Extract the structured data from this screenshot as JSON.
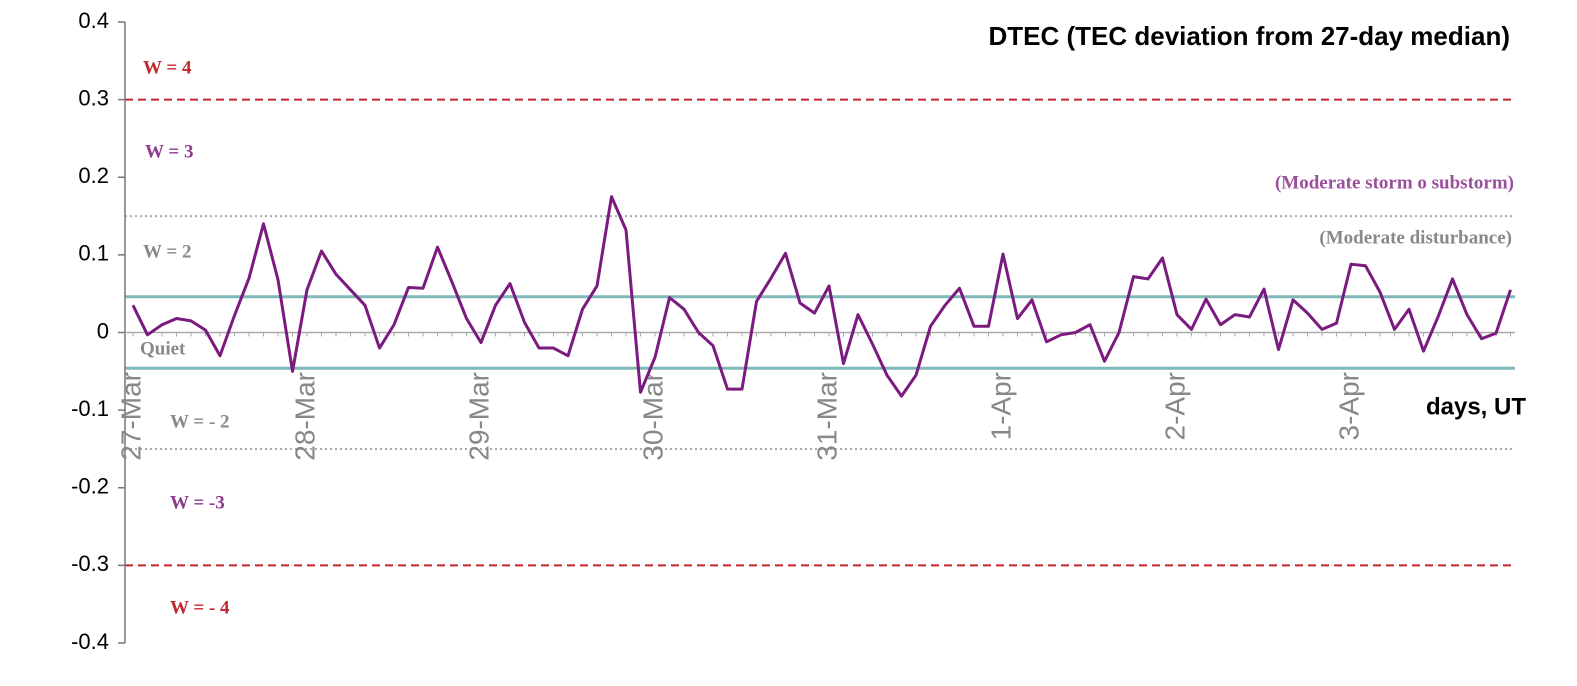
{
  "chart_data": {
    "type": "line",
    "title": "DTEC (TEC deviation from 27-day median)",
    "xlabel": "days, UT",
    "categories": [
      "27-Mar",
      null,
      null,
      null,
      null,
      null,
      null,
      null,
      null,
      null,
      null,
      null,
      "28-Mar",
      null,
      null,
      null,
      null,
      null,
      null,
      null,
      null,
      null,
      null,
      null,
      "29-Mar",
      null,
      null,
      null,
      null,
      null,
      null,
      null,
      null,
      null,
      null,
      null,
      "30-Mar",
      null,
      null,
      null,
      null,
      null,
      null,
      null,
      null,
      null,
      null,
      null,
      "31-Mar",
      null,
      null,
      null,
      null,
      null,
      null,
      null,
      null,
      null,
      null,
      null,
      "1-Apr",
      null,
      null,
      null,
      null,
      null,
      null,
      null,
      null,
      null,
      null,
      null,
      "2-Apr",
      null,
      null,
      null,
      null,
      null,
      null,
      null,
      null,
      null,
      null,
      null,
      "3-Apr",
      null,
      null,
      null,
      null,
      null,
      null,
      null,
      null,
      null,
      null,
      null
    ],
    "series": [
      {
        "name": "DTEC",
        "color": "#7b1a7f",
        "values": [
          0.035,
          -0.003,
          0.01,
          0.018,
          0.015,
          0.003,
          -0.03,
          0.022,
          0.07,
          0.14,
          0.068,
          -0.05,
          0.055,
          0.105,
          0.075,
          0.055,
          0.035,
          -0.02,
          0.01,
          0.058,
          0.057,
          0.11,
          0.065,
          0.018,
          -0.013,
          0.035,
          0.063,
          0.013,
          -0.02,
          -0.02,
          -0.03,
          0.03,
          0.06,
          0.175,
          0.132,
          -0.077,
          -0.032,
          0.045,
          0.03,
          0,
          -0.017,
          -0.073,
          -0.073,
          0.04,
          0.07,
          0.102,
          0.038,
          0.025,
          0.06,
          -0.04,
          0.023,
          -0.015,
          -0.055,
          -0.082,
          -0.055,
          0.008,
          0.035,
          0.057,
          0.008,
          0.008,
          0.101,
          0.018,
          0.042,
          -0.012,
          -0.003,
          0,
          0.01,
          -0.037,
          0,
          0.072,
          0.069,
          0.096,
          0.023,
          0.004,
          0.043,
          0.01,
          0.023,
          0.02,
          0.056,
          -0.022,
          0.042,
          0.025,
          0.004,
          0.012,
          0.088,
          0.086,
          0.052,
          0.004,
          0.03,
          -0.024,
          0.02,
          0.069,
          0.023,
          -0.008,
          -0.001,
          0.055
        ]
      }
    ],
    "ylim": [
      -0.4,
      0.4
    ],
    "yticks": [
      -0.4,
      -0.3,
      -0.2,
      -0.1,
      0,
      0.1,
      0.2,
      0.3,
      0.4
    ],
    "reference_lines": [
      {
        "value": 0.3,
        "color": "#c0282d",
        "style": "dashed"
      },
      {
        "value": -0.3,
        "color": "#c0282d",
        "style": "dashed"
      },
      {
        "value": 0.15,
        "color": "#aaaaaa",
        "style": "dotted"
      },
      {
        "value": -0.15,
        "color": "#aaaaaa",
        "style": "dotted"
      },
      {
        "value": 0.046,
        "color": "#7fb8b8",
        "style": "solid"
      },
      {
        "value": -0.046,
        "color": "#7fb8b8",
        "style": "solid"
      }
    ],
    "annotations": [
      {
        "text": "W = 4",
        "color": "#c0282d"
      },
      {
        "text": "W = 3",
        "color": "#8e3a8e"
      },
      {
        "text": "(Moderate storm o substorm)",
        "color": "#9b4f9b"
      },
      {
        "text": "W = 2",
        "color": "#888888"
      },
      {
        "text": "(Moderate disturbance)",
        "color": "#888888"
      },
      {
        "text": "Quiet",
        "color": "#888888"
      },
      {
        "text": "W = - 2",
        "color": "#888888"
      },
      {
        "text": "W = -3",
        "color": "#8e3a8e"
      },
      {
        "text": "W = - 4",
        "color": "#c0282d"
      }
    ]
  }
}
